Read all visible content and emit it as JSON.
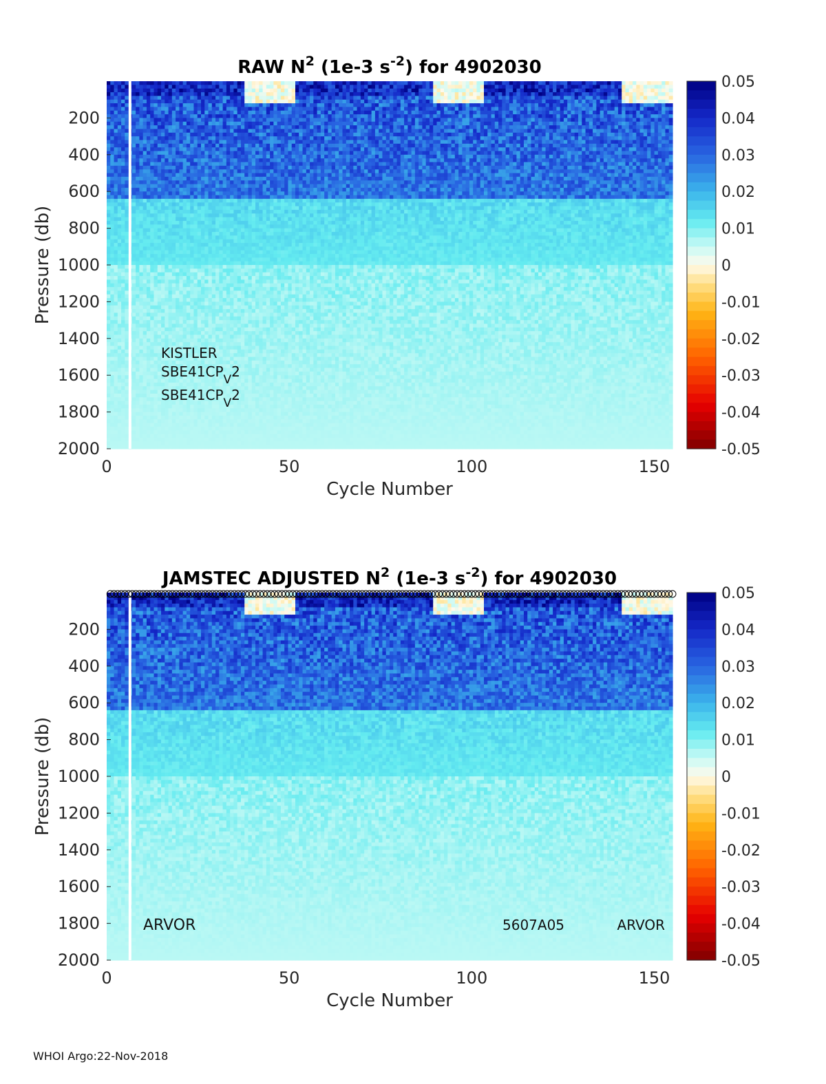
{
  "footer": "WHOI Argo:22-Nov-2018",
  "chart_data": [
    {
      "type": "heatmap",
      "title_parts": [
        "RAW N",
        "2",
        " (1e-3 s",
        "-2",
        ") for 4902030"
      ],
      "xlabel": "Cycle Number",
      "ylabel": "Pressure (db)",
      "xlim": [
        0,
        155
      ],
      "ylim": [
        0,
        2000
      ],
      "y_reversed": true,
      "xticks": [
        "0",
        "50",
        "100",
        "150"
      ],
      "yticks": [
        "200",
        "400",
        "600",
        "800",
        "1000",
        "1200",
        "1400",
        "1600",
        "1800",
        "2000"
      ],
      "colorbar": {
        "clim": [
          -0.05,
          0.05
        ],
        "ticks": [
          "0.05",
          "0.04",
          "0.03",
          "0.02",
          "0.01",
          "0",
          "-0.01",
          "-0.02",
          "-0.03",
          "-0.04",
          "-0.05"
        ]
      },
      "annotations": [
        {
          "parts": [
            "KISTLER"
          ]
        },
        {
          "parts": [
            "SBE41CP",
            "V",
            "2"
          ]
        },
        {
          "parts": [
            "SBE41CP",
            "V",
            "2"
          ]
        }
      ],
      "qc_markers": false
    },
    {
      "type": "heatmap",
      "title_parts": [
        "JAMSTEC  ADJUSTED N",
        "2",
        " (1e-3 s",
        "-2",
        ") for 4902030"
      ],
      "xlabel": "Cycle Number",
      "ylabel": "Pressure (db)",
      "xlim": [
        0,
        155
      ],
      "ylim": [
        0,
        2000
      ],
      "y_reversed": true,
      "xticks": [
        "0",
        "50",
        "100",
        "150"
      ],
      "yticks": [
        "200",
        "400",
        "600",
        "800",
        "1000",
        "1200",
        "1400",
        "1600",
        "1800",
        "2000"
      ],
      "colorbar": {
        "clim": [
          -0.05,
          0.05
        ],
        "ticks": [
          "0.05",
          "0.04",
          "0.03",
          "0.02",
          "0.01",
          "0",
          "-0.01",
          "-0.02",
          "-0.03",
          "-0.04",
          "-0.05"
        ]
      },
      "annotations": [
        {
          "parts": [
            "ARVOR"
          ]
        },
        {
          "parts": [
            "5607A05"
          ]
        },
        {
          "parts": [
            "ARVOR"
          ]
        }
      ],
      "qc_markers": true
    }
  ]
}
